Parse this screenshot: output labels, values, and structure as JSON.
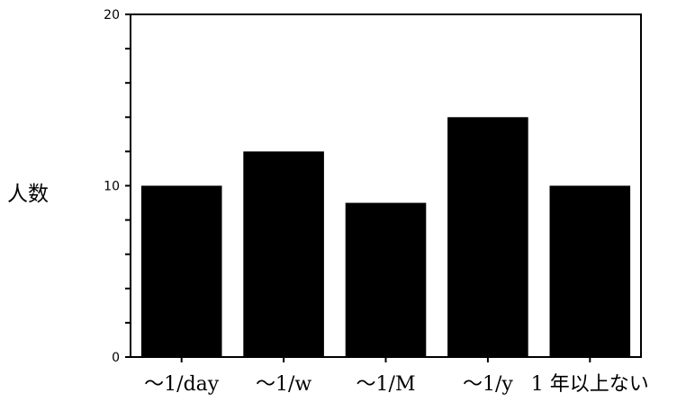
{
  "chart_data": {
    "type": "bar",
    "categories": [
      "～1/day",
      "～1/w",
      "～1/M",
      "～1/y",
      "1 年以上ない"
    ],
    "values": [
      10,
      12,
      9,
      14,
      10
    ],
    "title": "",
    "xlabel": "",
    "ylabel": "人数",
    "ylim": [
      0,
      20
    ],
    "yticks": [
      0,
      10,
      20
    ],
    "grid": false,
    "legend": false,
    "bar_color": "#000000"
  }
}
